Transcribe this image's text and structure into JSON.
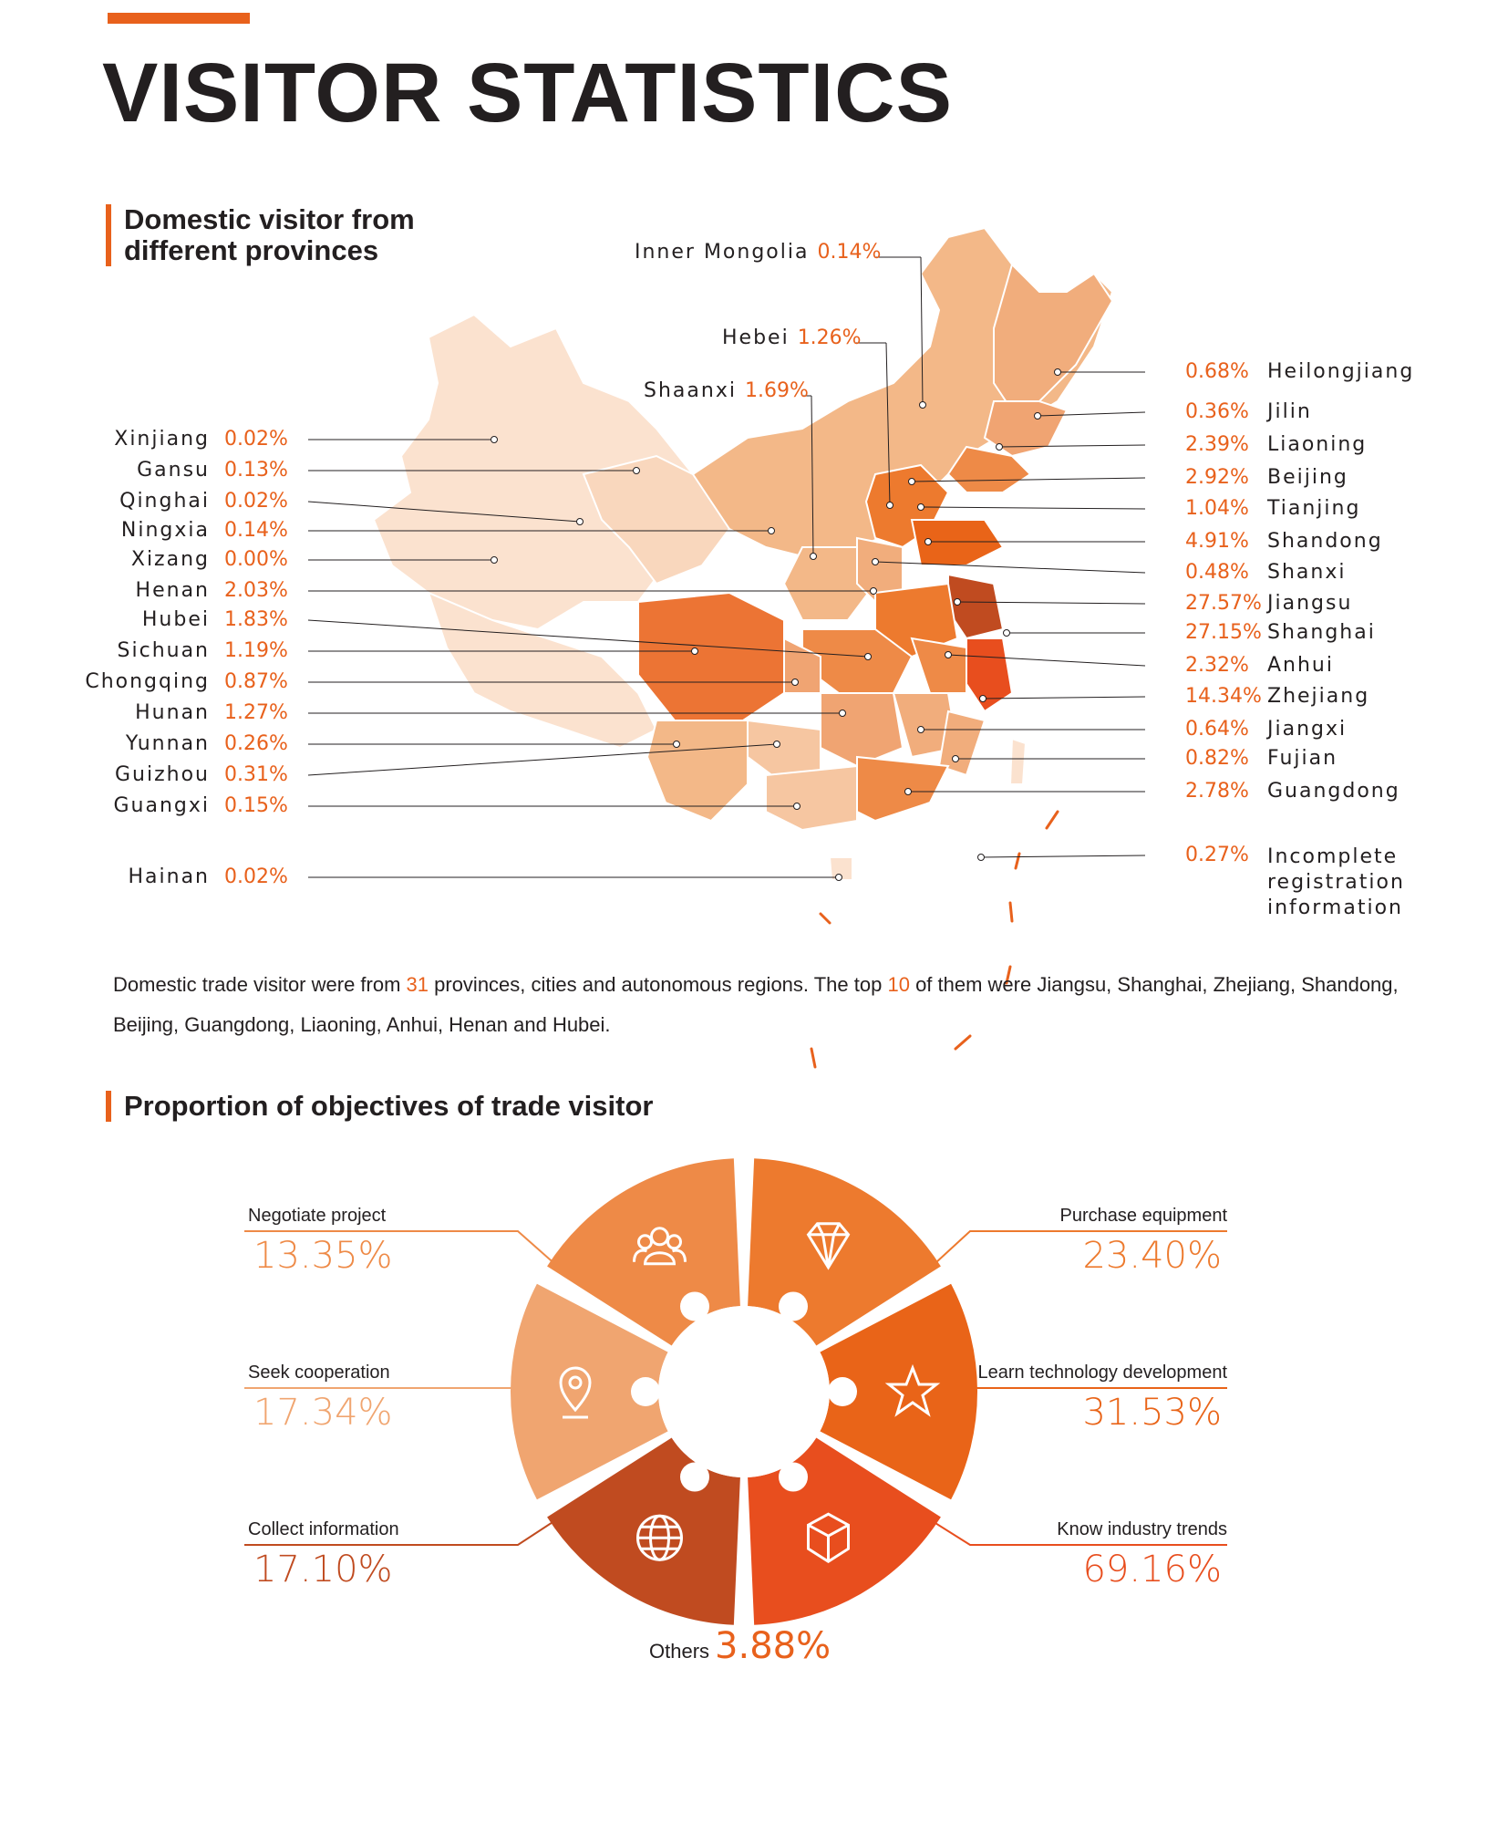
{
  "page": {
    "title": "VISITOR STATISTICS",
    "section1_title": "Domestic visitor from different provinces",
    "section2_title": "Proportion of objectives of trade visitor",
    "summary": {
      "part1": "Domestic trade visitor were from ",
      "provinces_count": "31",
      "part2": " provinces, cities and autonomous regions. The top ",
      "top_count": "10",
      "part3": " of them were Jiangsu, Shanghai, Zhejiang, Shandong, Beijing, Guangdong, Liaoning, Anhui, Henan and Hubei."
    }
  },
  "colors": {
    "accent": "#e8611c",
    "light": "#f9dcc5",
    "mid": "#f0a472",
    "dark": "#c04b20",
    "text": "#231f20"
  },
  "chart_data": [
    {
      "type": "table",
      "title": "Domestic visitor from different provinces",
      "left_column": [
        {
          "name": "Xinjiang",
          "value": "0.02%"
        },
        {
          "name": "Gansu",
          "value": "0.13%"
        },
        {
          "name": "Qinghai",
          "value": "0.02%"
        },
        {
          "name": "Ningxia",
          "value": "0.14%"
        },
        {
          "name": "Xizang",
          "value": "0.00%"
        },
        {
          "name": "Henan",
          "value": "2.03%"
        },
        {
          "name": "Hubei",
          "value": "1.83%"
        },
        {
          "name": "Sichuan",
          "value": "1.19%"
        },
        {
          "name": "Chongqing",
          "value": "0.87%"
        },
        {
          "name": "Hunan",
          "value": "1.27%"
        },
        {
          "name": "Yunnan",
          "value": "0.26%"
        },
        {
          "name": "Guizhou",
          "value": "0.31%"
        },
        {
          "name": "Guangxi",
          "value": "0.15%"
        },
        {
          "name": "Hainan",
          "value": "0.02%"
        }
      ],
      "top_column": [
        {
          "name": "Inner Mongolia",
          "value": "0.14%"
        },
        {
          "name": "Hebei",
          "value": "1.26%"
        },
        {
          "name": "Shaanxi",
          "value": "1.69%"
        }
      ],
      "right_column": [
        {
          "name": "Heilongjiang",
          "value": "0.68%"
        },
        {
          "name": "Jilin",
          "value": "0.36%"
        },
        {
          "name": "Liaoning",
          "value": "2.39%"
        },
        {
          "name": "Beijing",
          "value": "2.92%"
        },
        {
          "name": "Tianjing",
          "value": "1.04%"
        },
        {
          "name": "Shandong",
          "value": "4.91%"
        },
        {
          "name": "Shanxi",
          "value": "0.48%"
        },
        {
          "name": "Jiangsu",
          "value": "27.57%"
        },
        {
          "name": "Shanghai",
          "value": "27.15%"
        },
        {
          "name": "Anhui",
          "value": "2.32%"
        },
        {
          "name": "Zhejiang",
          "value": "14.34%"
        },
        {
          "name": "Jiangxi",
          "value": "0.64%"
        },
        {
          "name": "Fujian",
          "value": "0.82%"
        },
        {
          "name": "Guangdong",
          "value": "2.78%"
        },
        {
          "name": "Incomplete registration information",
          "value": "0.27%"
        }
      ]
    },
    {
      "type": "pie",
      "title": "Proportion of objectives of trade visitor",
      "slices": [
        {
          "label": "Purchase equipment",
          "value": "23.40%",
          "icon": "diamond-icon",
          "color": "#ed7a2e"
        },
        {
          "label": "Learn technology development",
          "value": "31.53%",
          "icon": "star-icon",
          "color": "#e96418"
        },
        {
          "label": "Know industry trends",
          "value": "69.16%",
          "icon": "cube-icon",
          "color": "#e84e1e"
        },
        {
          "label": "Collect information",
          "value": "17.10%",
          "icon": "globe-icon",
          "color": "#c04b20"
        },
        {
          "label": "Seek cooperation",
          "value": "17.34%",
          "icon": "location-pin-icon",
          "color": "#f0a570"
        },
        {
          "label": "Negotiate project",
          "value": "13.35%",
          "icon": "users-icon",
          "color": "#ee8a47"
        }
      ],
      "others": {
        "label": "Others",
        "value": "3.88%"
      }
    }
  ]
}
